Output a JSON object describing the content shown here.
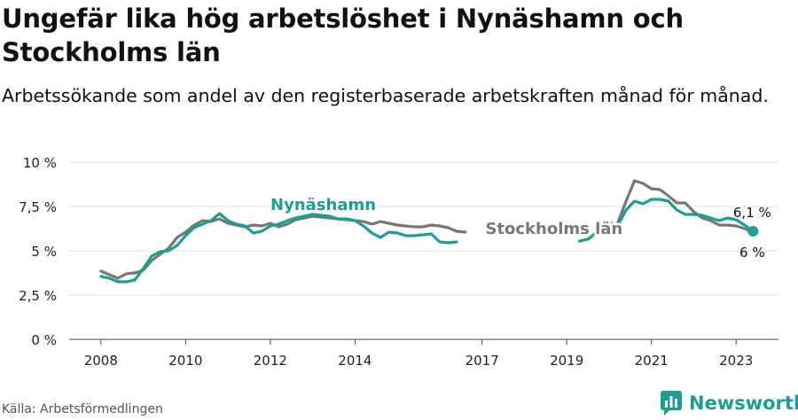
{
  "chart_data": {
    "type": "line",
    "title": "Ungefär lika hög arbetslöshet i Nynäshamn och Stockholms län",
    "subtitle": "Arbetssökande som andel av den registerbaserade arbetskraften månad för månad.",
    "ylim": [
      0,
      10
    ],
    "xlim": [
      2007.25,
      2024.0
    ],
    "y_ticks": [
      0,
      2.5,
      5,
      7.5,
      10
    ],
    "y_tick_labels": [
      "0 %",
      "2,5 %",
      "5 %",
      "7,5 %",
      "10 %"
    ],
    "x_ticks": [
      2008,
      2010,
      2012,
      2014,
      2017,
      2019,
      2021,
      2023
    ],
    "x_tick_labels": [
      "2008",
      "2010",
      "2012",
      "2014",
      "2017",
      "2019",
      "2021",
      "2023"
    ],
    "grid": true,
    "series": [
      {
        "name": "Nynäshamn",
        "color": "#1a9e96",
        "end_label": "6,1 %",
        "points": [
          [
            2008.0,
            3.55
          ],
          [
            2008.2,
            3.45
          ],
          [
            2008.4,
            3.25
          ],
          [
            2008.6,
            3.25
          ],
          [
            2008.8,
            3.35
          ],
          [
            2009.0,
            4.0
          ],
          [
            2009.2,
            4.7
          ],
          [
            2009.4,
            4.95
          ],
          [
            2009.6,
            5.0
          ],
          [
            2009.8,
            5.3
          ],
          [
            2010.0,
            5.85
          ],
          [
            2010.2,
            6.3
          ],
          [
            2010.4,
            6.5
          ],
          [
            2010.6,
            6.7
          ],
          [
            2010.8,
            7.1
          ],
          [
            2011.0,
            6.7
          ],
          [
            2011.2,
            6.5
          ],
          [
            2011.4,
            6.4
          ],
          [
            2011.6,
            6.0
          ],
          [
            2011.8,
            6.1
          ],
          [
            2012.0,
            6.4
          ],
          [
            2012.2,
            6.5
          ],
          [
            2012.4,
            6.7
          ],
          [
            2012.6,
            6.85
          ],
          [
            2012.8,
            6.95
          ],
          [
            2013.0,
            7.05
          ],
          [
            2013.2,
            7.0
          ],
          [
            2013.4,
            6.95
          ],
          [
            2013.6,
            6.8
          ],
          [
            2013.8,
            6.8
          ],
          [
            2014.0,
            6.7
          ],
          [
            2014.2,
            6.4
          ],
          [
            2014.4,
            6.0
          ],
          [
            2014.6,
            5.75
          ],
          [
            2014.8,
            6.05
          ],
          [
            2015.0,
            6.0
          ],
          [
            2015.2,
            5.85
          ],
          [
            2015.4,
            5.85
          ],
          [
            2015.6,
            5.9
          ],
          [
            2015.8,
            5.95
          ],
          [
            2016.0,
            5.5
          ],
          [
            2016.2,
            5.45
          ],
          [
            2016.4,
            5.5
          ],
          [
            2019.3,
            5.55
          ],
          [
            2019.5,
            5.65
          ],
          [
            2020.0,
            6.6
          ],
          [
            2020.2,
            6.4
          ],
          [
            2020.4,
            7.3
          ],
          [
            2020.6,
            7.8
          ],
          [
            2020.8,
            7.65
          ],
          [
            2021.0,
            7.9
          ],
          [
            2021.2,
            7.9
          ],
          [
            2021.4,
            7.8
          ],
          [
            2021.6,
            7.3
          ],
          [
            2021.8,
            7.05
          ],
          [
            2022.0,
            7.05
          ],
          [
            2022.2,
            7.0
          ],
          [
            2022.4,
            6.85
          ],
          [
            2022.6,
            6.7
          ],
          [
            2022.8,
            6.85
          ],
          [
            2023.0,
            6.75
          ],
          [
            2023.2,
            6.45
          ],
          [
            2023.4,
            6.1
          ]
        ]
      },
      {
        "name": "Stockholms län",
        "color": "#777777",
        "end_label": "6 %",
        "points": [
          [
            2008.0,
            3.85
          ],
          [
            2008.2,
            3.65
          ],
          [
            2008.4,
            3.45
          ],
          [
            2008.6,
            3.7
          ],
          [
            2008.8,
            3.75
          ],
          [
            2009.0,
            3.9
          ],
          [
            2009.2,
            4.45
          ],
          [
            2009.4,
            4.8
          ],
          [
            2009.6,
            5.15
          ],
          [
            2009.8,
            5.75
          ],
          [
            2010.0,
            6.05
          ],
          [
            2010.2,
            6.45
          ],
          [
            2010.4,
            6.7
          ],
          [
            2010.6,
            6.65
          ],
          [
            2010.8,
            6.8
          ],
          [
            2011.0,
            6.55
          ],
          [
            2011.2,
            6.45
          ],
          [
            2011.4,
            6.35
          ],
          [
            2011.6,
            6.45
          ],
          [
            2011.8,
            6.4
          ],
          [
            2012.0,
            6.55
          ],
          [
            2012.2,
            6.35
          ],
          [
            2012.4,
            6.5
          ],
          [
            2012.6,
            6.75
          ],
          [
            2012.8,
            6.85
          ],
          [
            2013.0,
            6.95
          ],
          [
            2013.2,
            6.9
          ],
          [
            2013.4,
            6.85
          ],
          [
            2013.6,
            6.8
          ],
          [
            2013.8,
            6.75
          ],
          [
            2014.0,
            6.7
          ],
          [
            2014.2,
            6.65
          ],
          [
            2014.4,
            6.5
          ],
          [
            2014.6,
            6.65
          ],
          [
            2014.8,
            6.55
          ],
          [
            2015.0,
            6.45
          ],
          [
            2015.2,
            6.4
          ],
          [
            2015.4,
            6.35
          ],
          [
            2015.6,
            6.35
          ],
          [
            2015.8,
            6.45
          ],
          [
            2016.0,
            6.4
          ],
          [
            2016.2,
            6.3
          ],
          [
            2016.4,
            6.1
          ],
          [
            2016.6,
            6.05
          ],
          [
            2020.2,
            6.55
          ],
          [
            2020.4,
            7.8
          ],
          [
            2020.6,
            8.95
          ],
          [
            2020.8,
            8.8
          ],
          [
            2021.0,
            8.5
          ],
          [
            2021.2,
            8.45
          ],
          [
            2021.4,
            8.1
          ],
          [
            2021.6,
            7.7
          ],
          [
            2021.8,
            7.7
          ],
          [
            2022.0,
            7.2
          ],
          [
            2022.2,
            6.85
          ],
          [
            2022.4,
            6.7
          ],
          [
            2022.6,
            6.45
          ],
          [
            2022.8,
            6.45
          ],
          [
            2023.0,
            6.4
          ],
          [
            2023.2,
            6.25
          ],
          [
            2023.4,
            6.0
          ]
        ]
      }
    ],
    "series_labels": [
      {
        "series": "Nynäshamn",
        "text": "Nynäshamn",
        "at": [
          2013.25,
          7.3
        ]
      },
      {
        "series": "Stockholms län",
        "text": "Stockholms län",
        "at": [
          2018.7,
          5.95
        ]
      }
    ]
  },
  "footer": {
    "source": "Källa: Arbetsförmedlingen",
    "brand": "Newsworthy",
    "brand_icon": "newsworthy-logo-icon"
  }
}
